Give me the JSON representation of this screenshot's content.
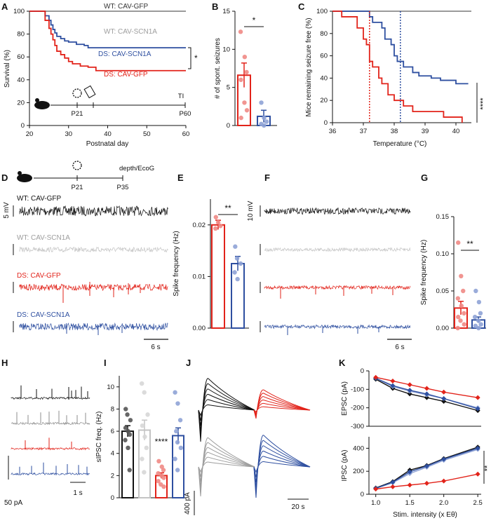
{
  "colors": {
    "wt_gfp": "#8c8c8c",
    "wt_scn1a": "#9d9d9d",
    "ds_gfp": "#e2231a",
    "ds_scn1a": "#2e4fa0",
    "light_red": "#f08a85",
    "light_blue": "#8fa3d6",
    "black": "#111111",
    "light_gray": "#c4c4c4"
  },
  "panels": {
    "A": {
      "label": "A",
      "ylabel": "Survival (%)",
      "xlabel": "Postnatal day",
      "xticks": [
        "20",
        "30",
        "40",
        "50",
        "60"
      ],
      "yticks": [
        "0",
        "20",
        "40",
        "60",
        "80",
        "100"
      ],
      "legend_wt_gfp": "WT: CAV-GFP",
      "legend_wt_scn1a": "WT: CAV-SCN1A",
      "legend_ds_scn1a": "DS: CAV-SCN1A",
      "legend_ds_gfp": "DS: CAV-GFP",
      "sig": "*",
      "timeline_p21": "P21",
      "timeline_p60": "P60",
      "timeline_tl": "TI"
    },
    "B": {
      "label": "B",
      "ylabel": "# of spont. seizures",
      "yticks": [
        "0",
        "5",
        "10",
        "15"
      ],
      "sig": "*"
    },
    "C": {
      "label": "C",
      "ylabel": "Mice remaining seizure free (%)",
      "xlabel": "Temperature (°C)",
      "xticks": [
        "36",
        "37",
        "38",
        "39",
        "40"
      ],
      "yticks": [
        "0",
        "20",
        "40",
        "60",
        "80",
        "100"
      ],
      "sig": "****"
    },
    "D": {
      "label": "D",
      "timeline_p21": "P21",
      "timeline_p35": "P35",
      "timeline_rec": "depth/EcoG",
      "trace_wt_gfp": "WT: CAV-GFP",
      "trace_wt_scn1a": "WT: CAV-SCN1A",
      "trace_ds_gfp": "DS: CAV-GFP",
      "trace_ds_scn1a": "DS: CAV-SCN1A",
      "scale_v": "5 mV",
      "scale_t": "6 s"
    },
    "E": {
      "label": "E",
      "ylabel": "Spike frequency (Hz)",
      "yticks": [
        "0.00",
        "0.01",
        "0.02"
      ],
      "sig": "**"
    },
    "F": {
      "label": "F",
      "scale_v": "10 mV",
      "scale_t": "6 s"
    },
    "G": {
      "label": "G",
      "ylabel": "Spike frequency (Hz)",
      "yticks": [
        "0.00",
        "0.05",
        "0.10",
        "0.15"
      ],
      "sig": "**"
    },
    "H": {
      "label": "H",
      "scale_i": "50 pA",
      "scale_t": "1 s"
    },
    "I": {
      "label": "I",
      "ylabel": "sIPSC freq. (Hz)",
      "yticks": [
        "0",
        "2",
        "4",
        "6",
        "8",
        "10"
      ],
      "sig": "****"
    },
    "J": {
      "label": "J",
      "scale_i": "400 pA",
      "scale_t": "20 s"
    },
    "K": {
      "label": "K",
      "xlabel": "Stim. intensity (x Eθ)",
      "ylabel_top": "EPSC (pA)",
      "ylabel_bottom": "IPSC (pA)",
      "xticks": [
        "1.0",
        "1.5",
        "2.0",
        "2.5"
      ],
      "yticks_top": [
        "0",
        "-100",
        "-200",
        "-300"
      ],
      "yticks_bottom": [
        "0",
        "200",
        "400"
      ],
      "sig": "**"
    }
  },
  "chart_data": [
    {
      "panel": "A",
      "type": "line",
      "title": "",
      "xlabel": "Postnatal day",
      "ylabel": "Survival (%)",
      "xlim": [
        20,
        60
      ],
      "ylim": [
        0,
        100
      ],
      "series": [
        {
          "name": "WT: CAV-GFP",
          "x": [
            20,
            60
          ],
          "y": [
            100,
            100
          ]
        },
        {
          "name": "DS: CAV-SCN1A",
          "x": [
            20,
            23,
            24,
            25,
            25.5,
            26,
            26.5,
            27,
            28,
            29,
            30,
            32,
            34,
            35,
            60
          ],
          "y": [
            100,
            100,
            96,
            92,
            88,
            84,
            81,
            78,
            76,
            74,
            73,
            71,
            70,
            68,
            68
          ]
        },
        {
          "name": "DS: CAV-GFP",
          "x": [
            20,
            23,
            24,
            25,
            25.5,
            26,
            26.5,
            27,
            28,
            29,
            30,
            31,
            33,
            35,
            37,
            60
          ],
          "y": [
            100,
            100,
            92,
            85,
            80,
            75,
            70,
            65,
            62,
            59,
            56,
            54,
            52,
            51,
            48,
            48
          ]
        }
      ]
    },
    {
      "panel": "B",
      "type": "bar",
      "ylabel": "# of spont. seizures",
      "ylim": [
        0,
        15
      ],
      "categories": [
        "DS: CAV-GFP",
        "DS: CAV-SCN1A"
      ],
      "values": [
        6.6,
        1.2
      ],
      "errors": [
        1.6,
        0.8
      ],
      "points": [
        [
          12.3,
          9,
          7,
          6,
          3,
          2,
          1
        ],
        [
          3,
          1,
          0.5,
          0.2,
          0
        ]
      ]
    },
    {
      "panel": "C",
      "type": "line",
      "xlabel": "Temperature (°C)",
      "ylabel": "Mice remaining seizure free (%)",
      "xlim": [
        36,
        40.5
      ],
      "ylim": [
        0,
        100
      ],
      "series": [
        {
          "name": "WT",
          "x": [
            36,
            40.5
          ],
          "y": [
            100,
            100
          ]
        },
        {
          "name": "DS: CAV-SCN1A",
          "x": [
            36,
            37.1,
            37.2,
            37.3,
            37.6,
            37.7,
            37.9,
            38.0,
            38.1,
            38.3,
            38.6,
            38.8,
            39.2,
            39.5,
            40.0,
            40.4
          ],
          "y": [
            100,
            100,
            95,
            90,
            85,
            75,
            70,
            60,
            55,
            50,
            45,
            42,
            40,
            38,
            35,
            35
          ]
        },
        {
          "name": "DS: CAV-GFP",
          "x": [
            36,
            36.3,
            36.8,
            37.0,
            37.1,
            37.2,
            37.3,
            37.5,
            37.6,
            37.8,
            38.0,
            38.3,
            38.6,
            39.6,
            40.0,
            40.2
          ],
          "y": [
            100,
            95,
            85,
            75,
            70,
            55,
            50,
            40,
            35,
            25,
            20,
            15,
            10,
            5,
            5,
            0
          ]
        }
      ],
      "vlines": [
        {
          "x": 37.2,
          "series": "DS: CAV-GFP"
        },
        {
          "x": 38.2,
          "series": "DS: CAV-SCN1A"
        }
      ]
    },
    {
      "panel": "E",
      "type": "bar",
      "ylabel": "Spike frequency (Hz)",
      "ylim": [
        0,
        0.025
      ],
      "categories": [
        "DS: CAV-GFP",
        "DS: CAV-SCN1A"
      ],
      "values": [
        0.02,
        0.0125
      ],
      "errors": [
        0.0009,
        0.0014
      ],
      "points": [
        [
          0.0215,
          0.0205,
          0.0198,
          0.0193
        ],
        [
          0.0158,
          0.0135,
          0.0125,
          0.0108,
          0.0095
        ]
      ]
    },
    {
      "panel": "G",
      "type": "bar",
      "ylabel": "Spike frequency (Hz)",
      "ylim": [
        0,
        0.15
      ],
      "categories": [
        "DS: CAV-GFP",
        "DS: CAV-SCN1A"
      ],
      "values": [
        0.027,
        0.011
      ],
      "errors": [
        0.009,
        0.004
      ],
      "points": [
        [
          0.115,
          0.07,
          0.05,
          0.04,
          0.03,
          0.02,
          0.015,
          0.01,
          0.005,
          0.0
        ],
        [
          0.05,
          0.035,
          0.02,
          0.015,
          0.01,
          0.005,
          0.003,
          0.0
        ]
      ]
    },
    {
      "panel": "I",
      "type": "bar",
      "ylabel": "sIPSC freq. (Hz)",
      "ylim": [
        0,
        11
      ],
      "categories": [
        "WT: CAV-GFP",
        "WT: CAV-SCN1A",
        "DS: CAV-GFP",
        "DS: CAV-SCN1A"
      ],
      "values": [
        6.0,
        6.1,
        2.0,
        5.6
      ],
      "errors": [
        0.5,
        0.9,
        0.25,
        0.7
      ],
      "points": [
        [
          8.0,
          7.5,
          7.0,
          6.3,
          6.0,
          5.7,
          5.2,
          4.5,
          2.5
        ],
        [
          10.3,
          9.5,
          7.5,
          6.5,
          5.5,
          4.5,
          3.5,
          2.3
        ],
        [
          3.3,
          2.8,
          2.5,
          2.2,
          2.0,
          1.8,
          1.5,
          1.2,
          1.0
        ],
        [
          9.5,
          8.5,
          7.0,
          6.0,
          5.0,
          4.5,
          3.5,
          2.5
        ]
      ]
    },
    {
      "panel": "K-EPSC",
      "type": "line",
      "xlabel": "Stim. intensity (x Eθ)",
      "ylabel": "EPSC (pA)",
      "xlim": [
        0.9,
        2.55
      ],
      "ylim": [
        -300,
        0
      ],
      "series": [
        {
          "name": "WT: CAV-GFP",
          "x": [
            1.0,
            1.25,
            1.5,
            1.75,
            2.0,
            2.5
          ],
          "y": [
            -45,
            -95,
            -125,
            -145,
            -165,
            -215
          ]
        },
        {
          "name": "WT: CAV-SCN1A",
          "x": [
            1.0,
            1.25,
            1.5,
            1.75,
            2.0,
            2.5
          ],
          "y": [
            -40,
            -85,
            -110,
            -130,
            -150,
            -200
          ]
        },
        {
          "name": "DS: CAV-SCN1A",
          "x": [
            1.0,
            1.25,
            1.5,
            1.75,
            2.0,
            2.5
          ],
          "y": [
            -40,
            -80,
            -105,
            -125,
            -150,
            -205
          ]
        },
        {
          "name": "DS: CAV-GFP",
          "x": [
            1.0,
            1.25,
            1.5,
            1.75,
            2.0,
            2.5
          ],
          "y": [
            -35,
            -55,
            -75,
            -95,
            -115,
            -145
          ]
        }
      ]
    },
    {
      "panel": "K-IPSC",
      "type": "line",
      "xlabel": "Stim. intensity (x Eθ)",
      "ylabel": "IPSC (pA)",
      "xlim": [
        0.9,
        2.55
      ],
      "ylim": [
        0,
        500
      ],
      "series": [
        {
          "name": "WT: CAV-GFP",
          "x": [
            1.0,
            1.25,
            1.5,
            1.75,
            2.0,
            2.5
          ],
          "y": [
            55,
            110,
            210,
            250,
            310,
            410
          ]
        },
        {
          "name": "WT: CAV-SCN1A",
          "x": [
            1.0,
            1.25,
            1.5,
            1.75,
            2.0,
            2.5
          ],
          "y": [
            50,
            100,
            180,
            235,
            295,
            390
          ]
        },
        {
          "name": "DS: CAV-SCN1A",
          "x": [
            1.0,
            1.25,
            1.5,
            1.75,
            2.0,
            2.5
          ],
          "y": [
            52,
            105,
            195,
            245,
            305,
            400
          ]
        },
        {
          "name": "DS: CAV-GFP",
          "x": [
            1.0,
            1.25,
            1.5,
            1.75,
            2.0,
            2.5
          ],
          "y": [
            45,
            65,
            80,
            95,
            115,
            175
          ]
        }
      ]
    }
  ]
}
